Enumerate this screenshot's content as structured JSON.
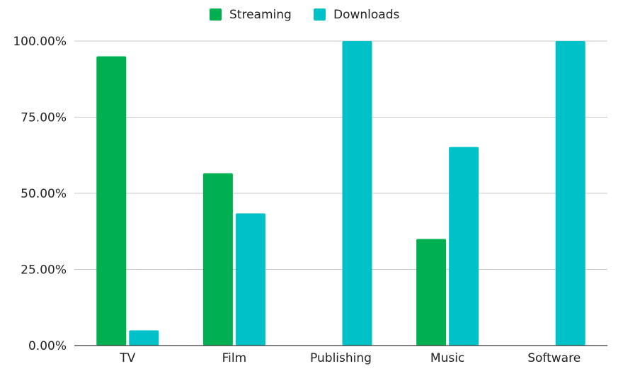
{
  "chart_data": {
    "type": "bar",
    "title": "",
    "xlabel": "",
    "ylabel": "",
    "categories": [
      "TV",
      "Film",
      "Publishing",
      "Music",
      "Software"
    ],
    "series": [
      {
        "name": "Streaming",
        "color": "#00B050",
        "values": [
          95,
          56.6,
          0,
          35,
          0
        ]
      },
      {
        "name": "Downloads",
        "color": "#00C0C8",
        "values": [
          5,
          43.4,
          100,
          65.2,
          100
        ]
      }
    ],
    "ylim": [
      0,
      100
    ],
    "yticks": [
      "0.00%",
      "25.00%",
      "50.00%",
      "75.00%",
      "100.00%"
    ],
    "ytick_values": [
      0,
      25,
      50,
      75,
      100
    ],
    "grid": true,
    "legend_position": "top-center"
  }
}
